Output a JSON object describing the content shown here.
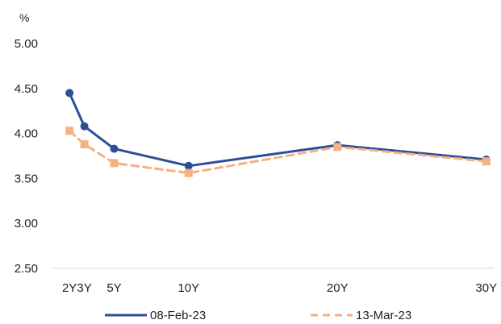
{
  "chart_data": {
    "type": "line",
    "unit_label": "%",
    "x_positions": [
      2,
      3,
      5,
      10,
      20,
      30
    ],
    "x_tick_labels": [
      "2Y",
      "3Y",
      "5Y",
      "10Y",
      "20Y",
      "30Y"
    ],
    "xlim": [
      0.8,
      30.5
    ],
    "ylim": [
      2.5,
      5.0
    ],
    "y_ticks": [
      2.5,
      3.0,
      3.5,
      4.0,
      4.5,
      5.0
    ],
    "y_tick_labels": [
      "2.50",
      "3.00",
      "3.50",
      "4.00",
      "4.50",
      "5.00"
    ],
    "grid": false,
    "legend_position": "bottom",
    "series": [
      {
        "name": "08-Feb-23",
        "color": "#2e4d99",
        "line_style": "solid",
        "points": [
          {
            "x": 2,
            "y": 4.45
          },
          {
            "x": 3,
            "y": 4.08
          },
          {
            "x": 5,
            "y": 3.83
          },
          {
            "x": 10,
            "y": 3.64
          },
          {
            "x": 20,
            "y": 3.87
          },
          {
            "x": 30,
            "y": 3.71
          }
        ]
      },
      {
        "name": "13-Mar-23",
        "color": "#f4b183",
        "line_style": "dashed",
        "points": [
          {
            "x": 2,
            "y": 4.03
          },
          {
            "x": 3,
            "y": 3.88
          },
          {
            "x": 5,
            "y": 3.67
          },
          {
            "x": 10,
            "y": 3.56
          },
          {
            "x": 20,
            "y": 3.85
          },
          {
            "x": 30,
            "y": 3.69
          }
        ]
      }
    ]
  }
}
